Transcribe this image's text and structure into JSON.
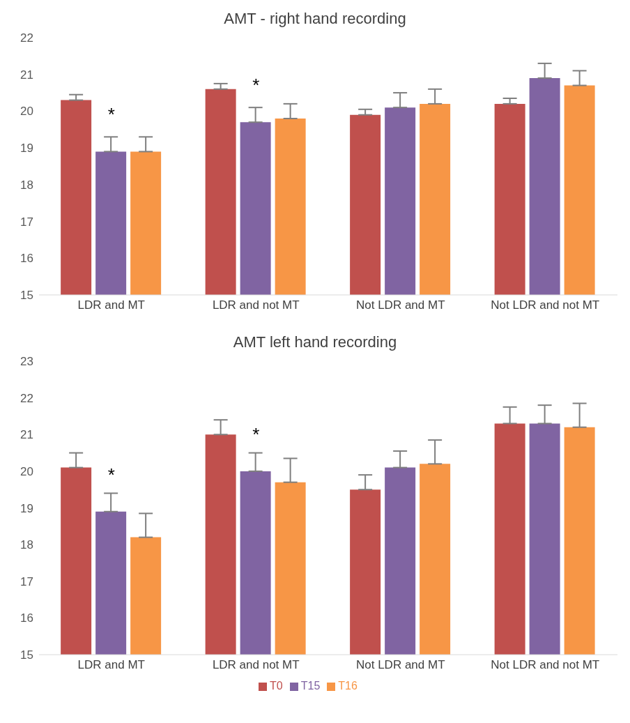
{
  "chart_data": [
    {
      "type": "bar",
      "title": "AMT - right hand recording",
      "categories": [
        "LDR and MT",
        "LDR and not MT",
        "Not LDR and MT",
        "Not LDR and not MT"
      ],
      "series": [
        {
          "color": "#c0504d",
          "values": [
            20.3,
            20.6,
            19.9,
            20.2
          ],
          "errors": [
            [
              20.3,
              20.45
            ],
            [
              20.6,
              20.75
            ],
            [
              19.9,
              20.05
            ],
            [
              20.2,
              20.35
            ]
          ]
        },
        {
          "color": "#8064a2",
          "values": [
            18.9,
            19.7,
            20.1,
            20.9
          ],
          "errors": [
            [
              18.9,
              19.3
            ],
            [
              19.7,
              20.1
            ],
            [
              20.1,
              20.5
            ],
            [
              20.9,
              21.3
            ]
          ]
        },
        {
          "color": "#f79646",
          "values": [
            18.9,
            19.8,
            20.2,
            20.7
          ],
          "errors": [
            [
              18.9,
              19.3
            ],
            [
              19.8,
              20.2
            ],
            [
              20.2,
              20.6
            ],
            [
              20.7,
              21.1
            ]
          ]
        }
      ],
      "ylim": [
        15,
        22
      ],
      "yticks": [
        15,
        16,
        17,
        18,
        19,
        20,
        21,
        22
      ],
      "grid": false,
      "legend": false,
      "annotations": [
        {
          "text": "*",
          "x": "LDR and MT",
          "y": 18.9
        },
        {
          "text": "*",
          "x": "LDR and not MT",
          "y": 19.7
        }
      ]
    },
    {
      "type": "bar",
      "title": "AMT left hand recording",
      "categories": [
        "LDR and MT",
        "LDR and not MT",
        "Not LDR and MT",
        "Not LDR and not MT"
      ],
      "series": [
        {
          "name": "T0",
          "color": "#c0504d",
          "values": [
            20.1,
            21.0,
            19.5,
            21.3
          ],
          "errors": [
            [
              20.1,
              20.5
            ],
            [
              21.0,
              21.4
            ],
            [
              19.5,
              19.9
            ],
            [
              21.3,
              21.75
            ]
          ]
        },
        {
          "name": "T15",
          "color": "#8064a2",
          "values": [
            18.9,
            20.0,
            20.1,
            21.3
          ],
          "errors": [
            [
              18.9,
              19.4
            ],
            [
              20.0,
              20.5
            ],
            [
              20.1,
              20.55
            ],
            [
              21.3,
              21.8
            ]
          ]
        },
        {
          "name": "T16",
          "color": "#f79646",
          "values": [
            18.2,
            19.7,
            20.2,
            21.2
          ],
          "errors": [
            [
              18.2,
              18.85
            ],
            [
              19.7,
              20.35
            ],
            [
              20.2,
              20.85
            ],
            [
              21.2,
              21.85
            ]
          ]
        }
      ],
      "ylim": [
        15,
        23
      ],
      "yticks": [
        15,
        16,
        17,
        18,
        19,
        20,
        21,
        22,
        23
      ],
      "grid": false,
      "legend": "bottom",
      "annotations": [
        {
          "text": "*",
          "x": "LDR and MT",
          "y": 18.9
        },
        {
          "text": "*",
          "x": "LDR and not MT",
          "y": 20.0
        }
      ]
    }
  ]
}
